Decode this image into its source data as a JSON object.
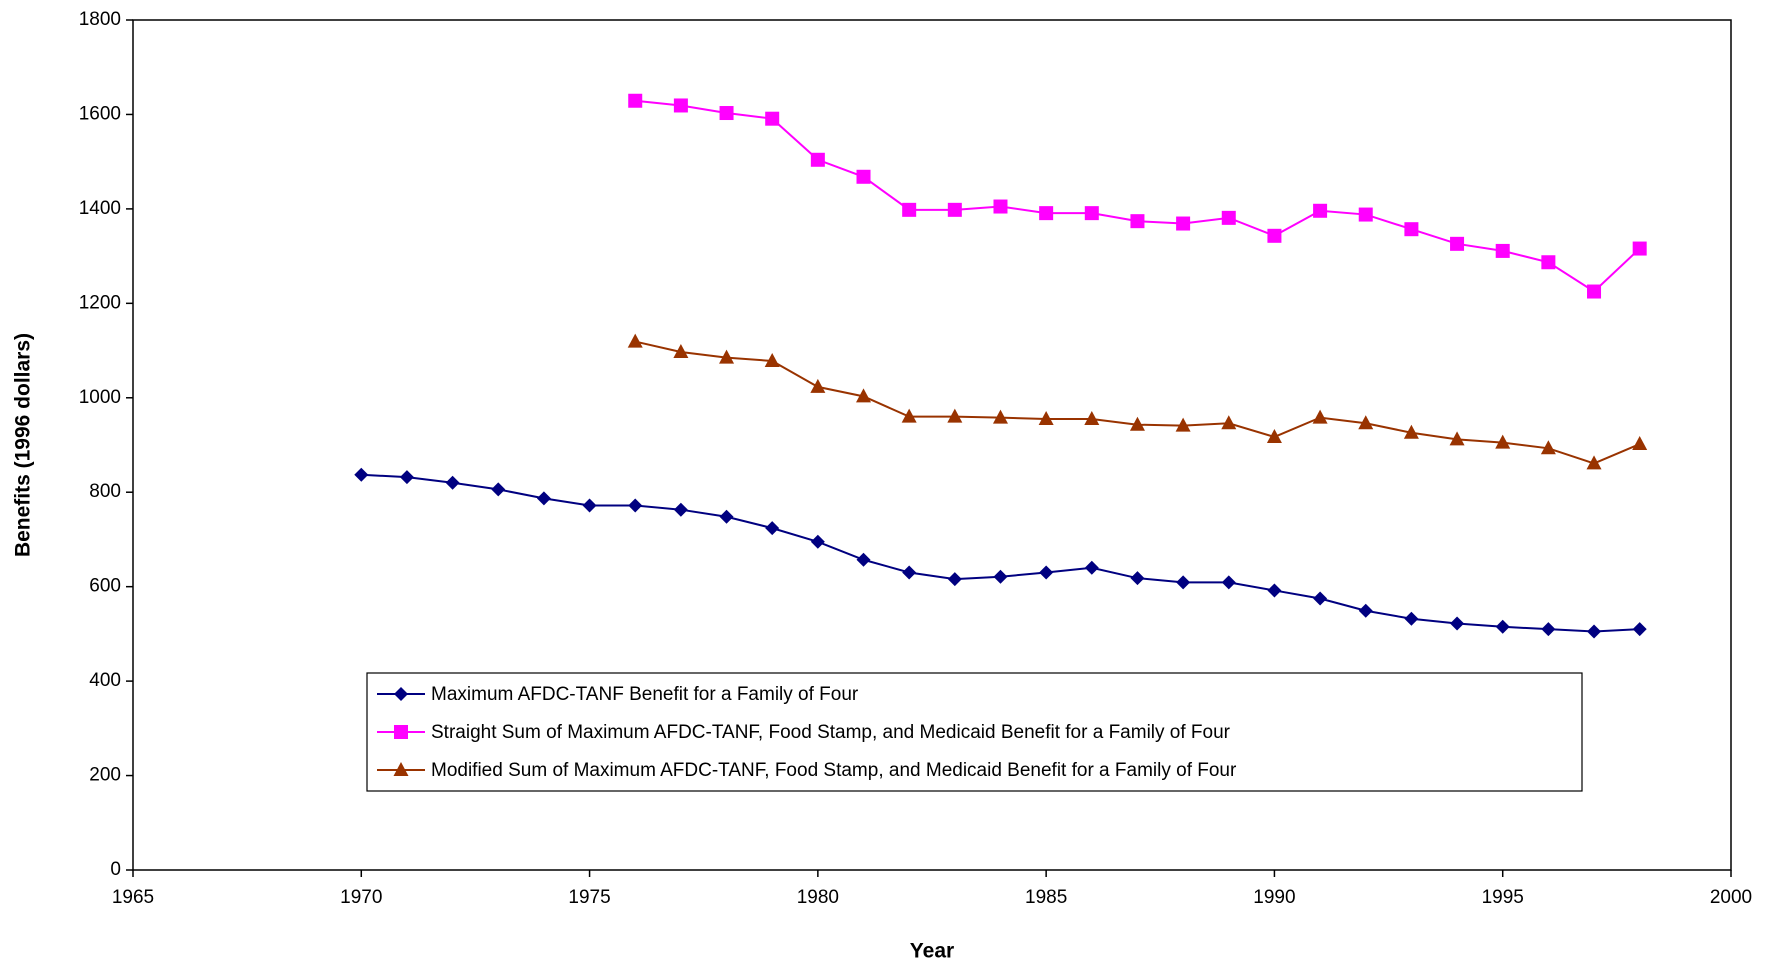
{
  "chart_data": {
    "type": "line",
    "x_label": "Year",
    "y_label": "Benefits (1996 dollars)",
    "x": [
      1970,
      1971,
      1972,
      1973,
      1974,
      1975,
      1976,
      1977,
      1978,
      1979,
      1980,
      1981,
      1982,
      1983,
      1984,
      1985,
      1986,
      1987,
      1988,
      1989,
      1990,
      1991,
      1992,
      1993,
      1994,
      1995,
      1996,
      1997,
      1998
    ],
    "series": [
      {
        "name": "Maximum AFDC-TANF Benefit for a Family of Four",
        "color": "#000080",
        "marker": "diamond",
        "values": [
          837,
          832,
          820,
          806,
          787,
          772,
          772,
          763,
          748,
          724,
          695,
          657,
          630,
          616,
          621,
          630,
          640,
          618,
          609,
          609,
          592,
          575,
          549,
          532,
          522,
          515,
          510,
          505,
          510
        ]
      },
      {
        "name": "Straight Sum of Maximum AFDC-TANF, Food Stamp, and Medicaid Benefit for a Family of Four",
        "color": "#ff00ff",
        "marker": "square",
        "values": [
          null,
          null,
          null,
          null,
          null,
          null,
          1629,
          1619,
          1603,
          1591,
          1504,
          1468,
          1398,
          1398,
          1405,
          1391,
          1391,
          1374,
          1369,
          1381,
          1343,
          1396,
          1388,
          1357,
          1326,
          1311,
          1287,
          1225,
          1316
        ]
      },
      {
        "name": "Modified Sum of Maximum AFDC-TANF, Food Stamp, and Medicaid Benefit for a Family of Four",
        "color": "#993300",
        "marker": "triangle",
        "values": [
          null,
          null,
          null,
          null,
          null,
          null,
          1119,
          1097,
          1085,
          1078,
          1023,
          1003,
          960,
          960,
          958,
          955,
          955,
          943,
          941,
          946,
          917,
          958,
          946,
          926,
          912,
          905,
          893,
          861,
          902
        ]
      }
    ],
    "xlim": [
      1965,
      2000
    ],
    "xticks": [
      1965,
      1970,
      1975,
      1980,
      1985,
      1990,
      1995,
      2000
    ],
    "ylim": [
      0,
      1800
    ],
    "yticks": [
      0,
      200,
      400,
      600,
      800,
      1000,
      1200,
      1400,
      1600,
      1800
    ]
  }
}
